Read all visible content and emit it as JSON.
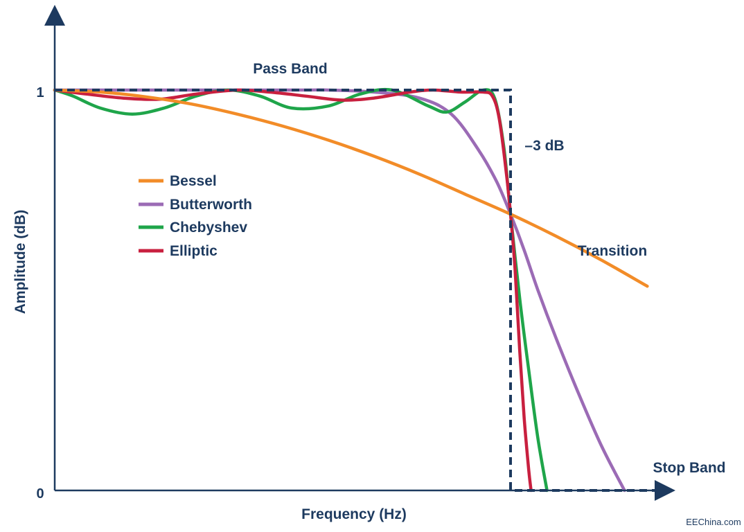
{
  "chart_data": {
    "type": "line",
    "xlabel": "Frequency (Hz)",
    "ylabel": "Amplitude (dB)",
    "y_ticks": [
      "0",
      "1"
    ],
    "ylim": [
      0,
      1.5
    ],
    "xlim": [
      0,
      1.36
    ],
    "grid": false,
    "legend_position": "upper-left",
    "annotations": {
      "pass_band": "Pass Band",
      "minus3db": "–3 dB",
      "transition": "Transition",
      "stop_band": "Stop Band"
    },
    "watermark": "EEChina.com",
    "colors": {
      "axis": "#1d3a5f",
      "text": "#1d3a5f"
    },
    "ideal_response": {
      "points": [
        [
          0,
          1.0
        ],
        [
          1.0,
          1.0
        ],
        [
          1.0,
          0.0
        ],
        [
          1.36,
          0.0
        ]
      ]
    },
    "series": [
      {
        "name": "Bessel",
        "color": "#f28c28",
        "points": [
          [
            0,
            1.0
          ],
          [
            0.1,
            0.995
          ],
          [
            0.2,
            0.983
          ],
          [
            0.3,
            0.965
          ],
          [
            0.4,
            0.94
          ],
          [
            0.5,
            0.91
          ],
          [
            0.6,
            0.875
          ],
          [
            0.7,
            0.835
          ],
          [
            0.8,
            0.79
          ],
          [
            0.9,
            0.74
          ],
          [
            1.0,
            0.69
          ],
          [
            1.1,
            0.635
          ],
          [
            1.2,
            0.575
          ],
          [
            1.3,
            0.51
          ]
        ]
      },
      {
        "name": "Butterworth",
        "color": "#9b6bb5",
        "points": [
          [
            0,
            1.0
          ],
          [
            0.5,
            1.0
          ],
          [
            0.6,
            1.0
          ],
          [
            0.7,
            0.995
          ],
          [
            0.8,
            0.98
          ],
          [
            0.87,
            0.94
          ],
          [
            0.93,
            0.85
          ],
          [
            0.97,
            0.77
          ],
          [
            1.0,
            0.69
          ],
          [
            1.03,
            0.6
          ],
          [
            1.06,
            0.5
          ],
          [
            1.1,
            0.38
          ],
          [
            1.15,
            0.24
          ],
          [
            1.2,
            0.11
          ],
          [
            1.25,
            0.0
          ]
        ]
      },
      {
        "name": "Chebyshev",
        "color": "#1fa54a",
        "points": [
          [
            0,
            1.0
          ],
          [
            0.04,
            0.985
          ],
          [
            0.1,
            0.955
          ],
          [
            0.17,
            0.94
          ],
          [
            0.24,
            0.955
          ],
          [
            0.31,
            0.985
          ],
          [
            0.38,
            1.0
          ],
          [
            0.45,
            0.985
          ],
          [
            0.52,
            0.955
          ],
          [
            0.6,
            0.96
          ],
          [
            0.67,
            0.99
          ],
          [
            0.74,
            1.0
          ],
          [
            0.82,
            0.96
          ],
          [
            0.86,
            0.945
          ],
          [
            0.9,
            0.97
          ],
          [
            0.94,
            1.0
          ],
          [
            0.965,
            0.98
          ],
          [
            0.985,
            0.86
          ],
          [
            1.0,
            0.69
          ],
          [
            1.02,
            0.48
          ],
          [
            1.04,
            0.3
          ],
          [
            1.06,
            0.13
          ],
          [
            1.08,
            0.0
          ]
        ]
      },
      {
        "name": "Elliptic",
        "color": "#c8203f",
        "points": [
          [
            0,
            1.0
          ],
          [
            0.07,
            0.99
          ],
          [
            0.15,
            0.98
          ],
          [
            0.23,
            0.977
          ],
          [
            0.31,
            0.99
          ],
          [
            0.4,
            1.0
          ],
          [
            0.47,
            0.995
          ],
          [
            0.55,
            0.985
          ],
          [
            0.63,
            0.975
          ],
          [
            0.7,
            0.98
          ],
          [
            0.78,
            0.995
          ],
          [
            0.83,
            1.0
          ],
          [
            0.89,
            0.995
          ],
          [
            0.94,
            0.995
          ],
          [
            0.96,
            0.985
          ],
          [
            0.975,
            0.93
          ],
          [
            0.99,
            0.8
          ],
          [
            1.0,
            0.69
          ],
          [
            1.01,
            0.55
          ],
          [
            1.02,
            0.35
          ],
          [
            1.03,
            0.18
          ],
          [
            1.04,
            0.05
          ],
          [
            1.045,
            0.0
          ]
        ]
      }
    ]
  }
}
